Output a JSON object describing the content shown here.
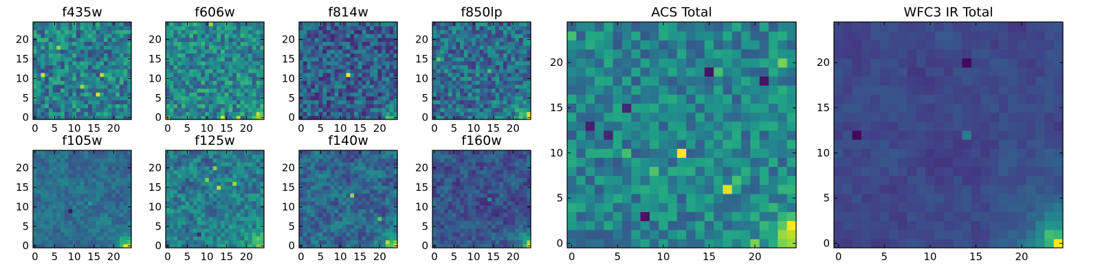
{
  "chart_data": {
    "type": "heatmap",
    "colormap": "viridis",
    "grid": false,
    "legend": "none",
    "panels": [
      {
        "title": "f435w",
        "xlim": [
          0,
          24
        ],
        "ylim": [
          0,
          24
        ],
        "xticks": [
          0,
          5,
          10,
          15,
          20
        ],
        "yticks": [
          0,
          5,
          10,
          15,
          20
        ],
        "rows": 25,
        "cols": 25,
        "mean": 0.43,
        "noise": 0.13,
        "smooth": 0.0,
        "corner": 0.05,
        "seed": 11,
        "hotspots": [
          {
            "x": 2,
            "y": 11,
            "v": 0.95
          },
          {
            "x": 16,
            "y": 6,
            "v": 0.95
          },
          {
            "x": 17,
            "y": 11,
            "v": 0.9
          },
          {
            "x": 6,
            "y": 18,
            "v": 0.85
          },
          {
            "x": 12,
            "y": 8,
            "v": 0.85
          }
        ]
      },
      {
        "title": "f606w",
        "xlim": [
          0,
          24
        ],
        "ylim": [
          0,
          24
        ],
        "xticks": [
          0,
          5,
          10,
          15,
          20
        ],
        "yticks": [
          0,
          5,
          10,
          15,
          20
        ],
        "rows": 25,
        "cols": 25,
        "mean": 0.47,
        "noise": 0.12,
        "smooth": 0.0,
        "corner": 0.3,
        "seed": 23,
        "hotspots": [
          {
            "x": 14,
            "y": 0,
            "v": 0.95
          },
          {
            "x": 23,
            "y": 1,
            "v": 0.9
          },
          {
            "x": 18,
            "y": 0,
            "v": 0.9
          },
          {
            "x": 0,
            "y": 0,
            "v": 0.85
          },
          {
            "x": 11,
            "y": 24,
            "v": 0.85
          }
        ]
      },
      {
        "title": "f814w",
        "xlim": [
          0,
          24
        ],
        "ylim": [
          0,
          24
        ],
        "xticks": [
          0,
          5,
          10,
          15,
          20
        ],
        "yticks": [
          0,
          5,
          10,
          15,
          20
        ],
        "rows": 25,
        "cols": 25,
        "mean": 0.3,
        "noise": 0.12,
        "smooth": 0.0,
        "corner": 0.35,
        "seed": 37,
        "hotspots": [
          {
            "x": 12,
            "y": 11,
            "v": 1.0
          },
          {
            "x": 22,
            "y": 0,
            "v": 0.75
          }
        ]
      },
      {
        "title": "f850lp",
        "xlim": [
          0,
          24
        ],
        "ylim": [
          0,
          24
        ],
        "xticks": [
          0,
          5,
          10,
          15,
          20
        ],
        "yticks": [
          0,
          5,
          10,
          15,
          20
        ],
        "rows": 25,
        "cols": 25,
        "mean": 0.36,
        "noise": 0.12,
        "smooth": 0.0,
        "corner": 0.55,
        "seed": 41,
        "hotspots": [
          {
            "x": 24,
            "y": 1,
            "v": 0.95
          },
          {
            "x": 1,
            "y": 15,
            "v": 0.75
          },
          {
            "x": 14,
            "y": 12,
            "v": 0.7
          }
        ]
      },
      {
        "title": "f105w",
        "xlim": [
          0,
          24
        ],
        "ylim": [
          0,
          24
        ],
        "xticks": [
          0,
          5,
          10,
          15,
          20
        ],
        "yticks": [
          0,
          5,
          10,
          15,
          20
        ],
        "rows": 25,
        "cols": 25,
        "mean": 0.36,
        "noise": 0.09,
        "smooth": 0.45,
        "corner": 0.65,
        "seed": 53,
        "hotspots": [
          {
            "x": 23,
            "y": 0,
            "v": 1.0
          },
          {
            "x": 14,
            "y": 11,
            "v": 0.55
          },
          {
            "x": 9,
            "y": 9,
            "v": 0.05
          }
        ]
      },
      {
        "title": "f125w",
        "xlim": [
          0,
          24
        ],
        "ylim": [
          0,
          24
        ],
        "xticks": [
          0,
          5,
          10,
          15,
          20
        ],
        "yticks": [
          0,
          5,
          10,
          15,
          20
        ],
        "rows": 25,
        "cols": 25,
        "mean": 0.42,
        "noise": 0.15,
        "smooth": 0.4,
        "corner": 0.55,
        "seed": 61,
        "hotspots": [
          {
            "x": 13,
            "y": 15,
            "v": 0.9
          },
          {
            "x": 17,
            "y": 16,
            "v": 0.85
          },
          {
            "x": 10,
            "y": 17,
            "v": 0.8
          },
          {
            "x": 12,
            "y": 20,
            "v": 0.8
          },
          {
            "x": 8,
            "y": 3,
            "v": 0.1
          }
        ]
      },
      {
        "title": "f140w",
        "xlim": [
          0,
          24
        ],
        "ylim": [
          0,
          24
        ],
        "xticks": [
          0,
          5,
          10,
          15,
          20
        ],
        "yticks": [
          0,
          5,
          10,
          15,
          20
        ],
        "rows": 25,
        "cols": 25,
        "mean": 0.33,
        "noise": 0.14,
        "smooth": 0.45,
        "corner": 0.7,
        "seed": 71,
        "hotspots": [
          {
            "x": 13,
            "y": 13,
            "v": 0.85
          },
          {
            "x": 22,
            "y": 1,
            "v": 0.9
          },
          {
            "x": 20,
            "y": 7,
            "v": 0.75
          }
        ]
      },
      {
        "title": "f160w",
        "xlim": [
          0,
          24
        ],
        "ylim": [
          0,
          24
        ],
        "xticks": [
          0,
          5,
          10,
          15,
          20
        ],
        "yticks": [
          0,
          5,
          10,
          15,
          20
        ],
        "rows": 25,
        "cols": 25,
        "mean": 0.26,
        "noise": 0.12,
        "smooth": 0.5,
        "corner": 0.8,
        "seed": 83,
        "hotspots": [
          {
            "x": 24,
            "y": 0,
            "v": 1.0
          },
          {
            "x": 14,
            "y": 12,
            "v": 0.5
          }
        ]
      },
      {
        "title": "ACS Total",
        "xlim": [
          0,
          24
        ],
        "ylim": [
          0,
          24
        ],
        "xticks": [
          0,
          5,
          10,
          15,
          20
        ],
        "yticks": [
          0,
          5,
          10,
          15,
          20
        ],
        "rows": 25,
        "cols": 25,
        "mean": 0.45,
        "noise": 0.1,
        "smooth": 0.0,
        "corner": 0.5,
        "seed": 97,
        "hotspots": [
          {
            "x": 12,
            "y": 10,
            "v": 1.0
          },
          {
            "x": 17,
            "y": 6,
            "v": 0.95
          },
          {
            "x": 24,
            "y": 2,
            "v": 1.0
          },
          {
            "x": 23,
            "y": 1,
            "v": 0.85
          },
          {
            "x": 24,
            "y": 0,
            "v": 0.85
          },
          {
            "x": 23,
            "y": 0,
            "v": 0.8
          },
          {
            "x": 20,
            "y": 0,
            "v": 0.8
          },
          {
            "x": 23,
            "y": 20,
            "v": 0.8
          },
          {
            "x": 0,
            "y": 23,
            "v": 0.7
          },
          {
            "x": 9,
            "y": 8,
            "v": 0.72
          },
          {
            "x": 16,
            "y": 19,
            "v": 0.7
          },
          {
            "x": 6,
            "y": 10,
            "v": 0.7
          },
          {
            "x": 18,
            "y": 7,
            "v": 0.7
          },
          {
            "x": 15,
            "y": 19,
            "v": 0.05
          },
          {
            "x": 21,
            "y": 18,
            "v": 0.05
          },
          {
            "x": 8,
            "y": 3,
            "v": 0.05
          },
          {
            "x": 2,
            "y": 13,
            "v": 0.08
          },
          {
            "x": 4,
            "y": 12,
            "v": 0.1
          },
          {
            "x": 6,
            "y": 15,
            "v": 0.1
          }
        ]
      },
      {
        "title": "WFC3 IR Total",
        "xlim": [
          0,
          24
        ],
        "ylim": [
          0,
          24
        ],
        "xticks": [
          0,
          5,
          10,
          15,
          20
        ],
        "yticks": [
          0,
          5,
          10,
          15,
          20
        ],
        "rows": 25,
        "cols": 25,
        "mean": 0.22,
        "noise": 0.06,
        "smooth": 0.6,
        "corner": 0.75,
        "seed": 109,
        "hotspots": [
          {
            "x": 24,
            "y": 0,
            "v": 1.0
          },
          {
            "x": 23,
            "y": 1,
            "v": 0.7
          },
          {
            "x": 14,
            "y": 12,
            "v": 0.42
          },
          {
            "x": 14,
            "y": 20,
            "v": 0.02
          },
          {
            "x": 2,
            "y": 12,
            "v": 0.02
          }
        ]
      }
    ]
  }
}
